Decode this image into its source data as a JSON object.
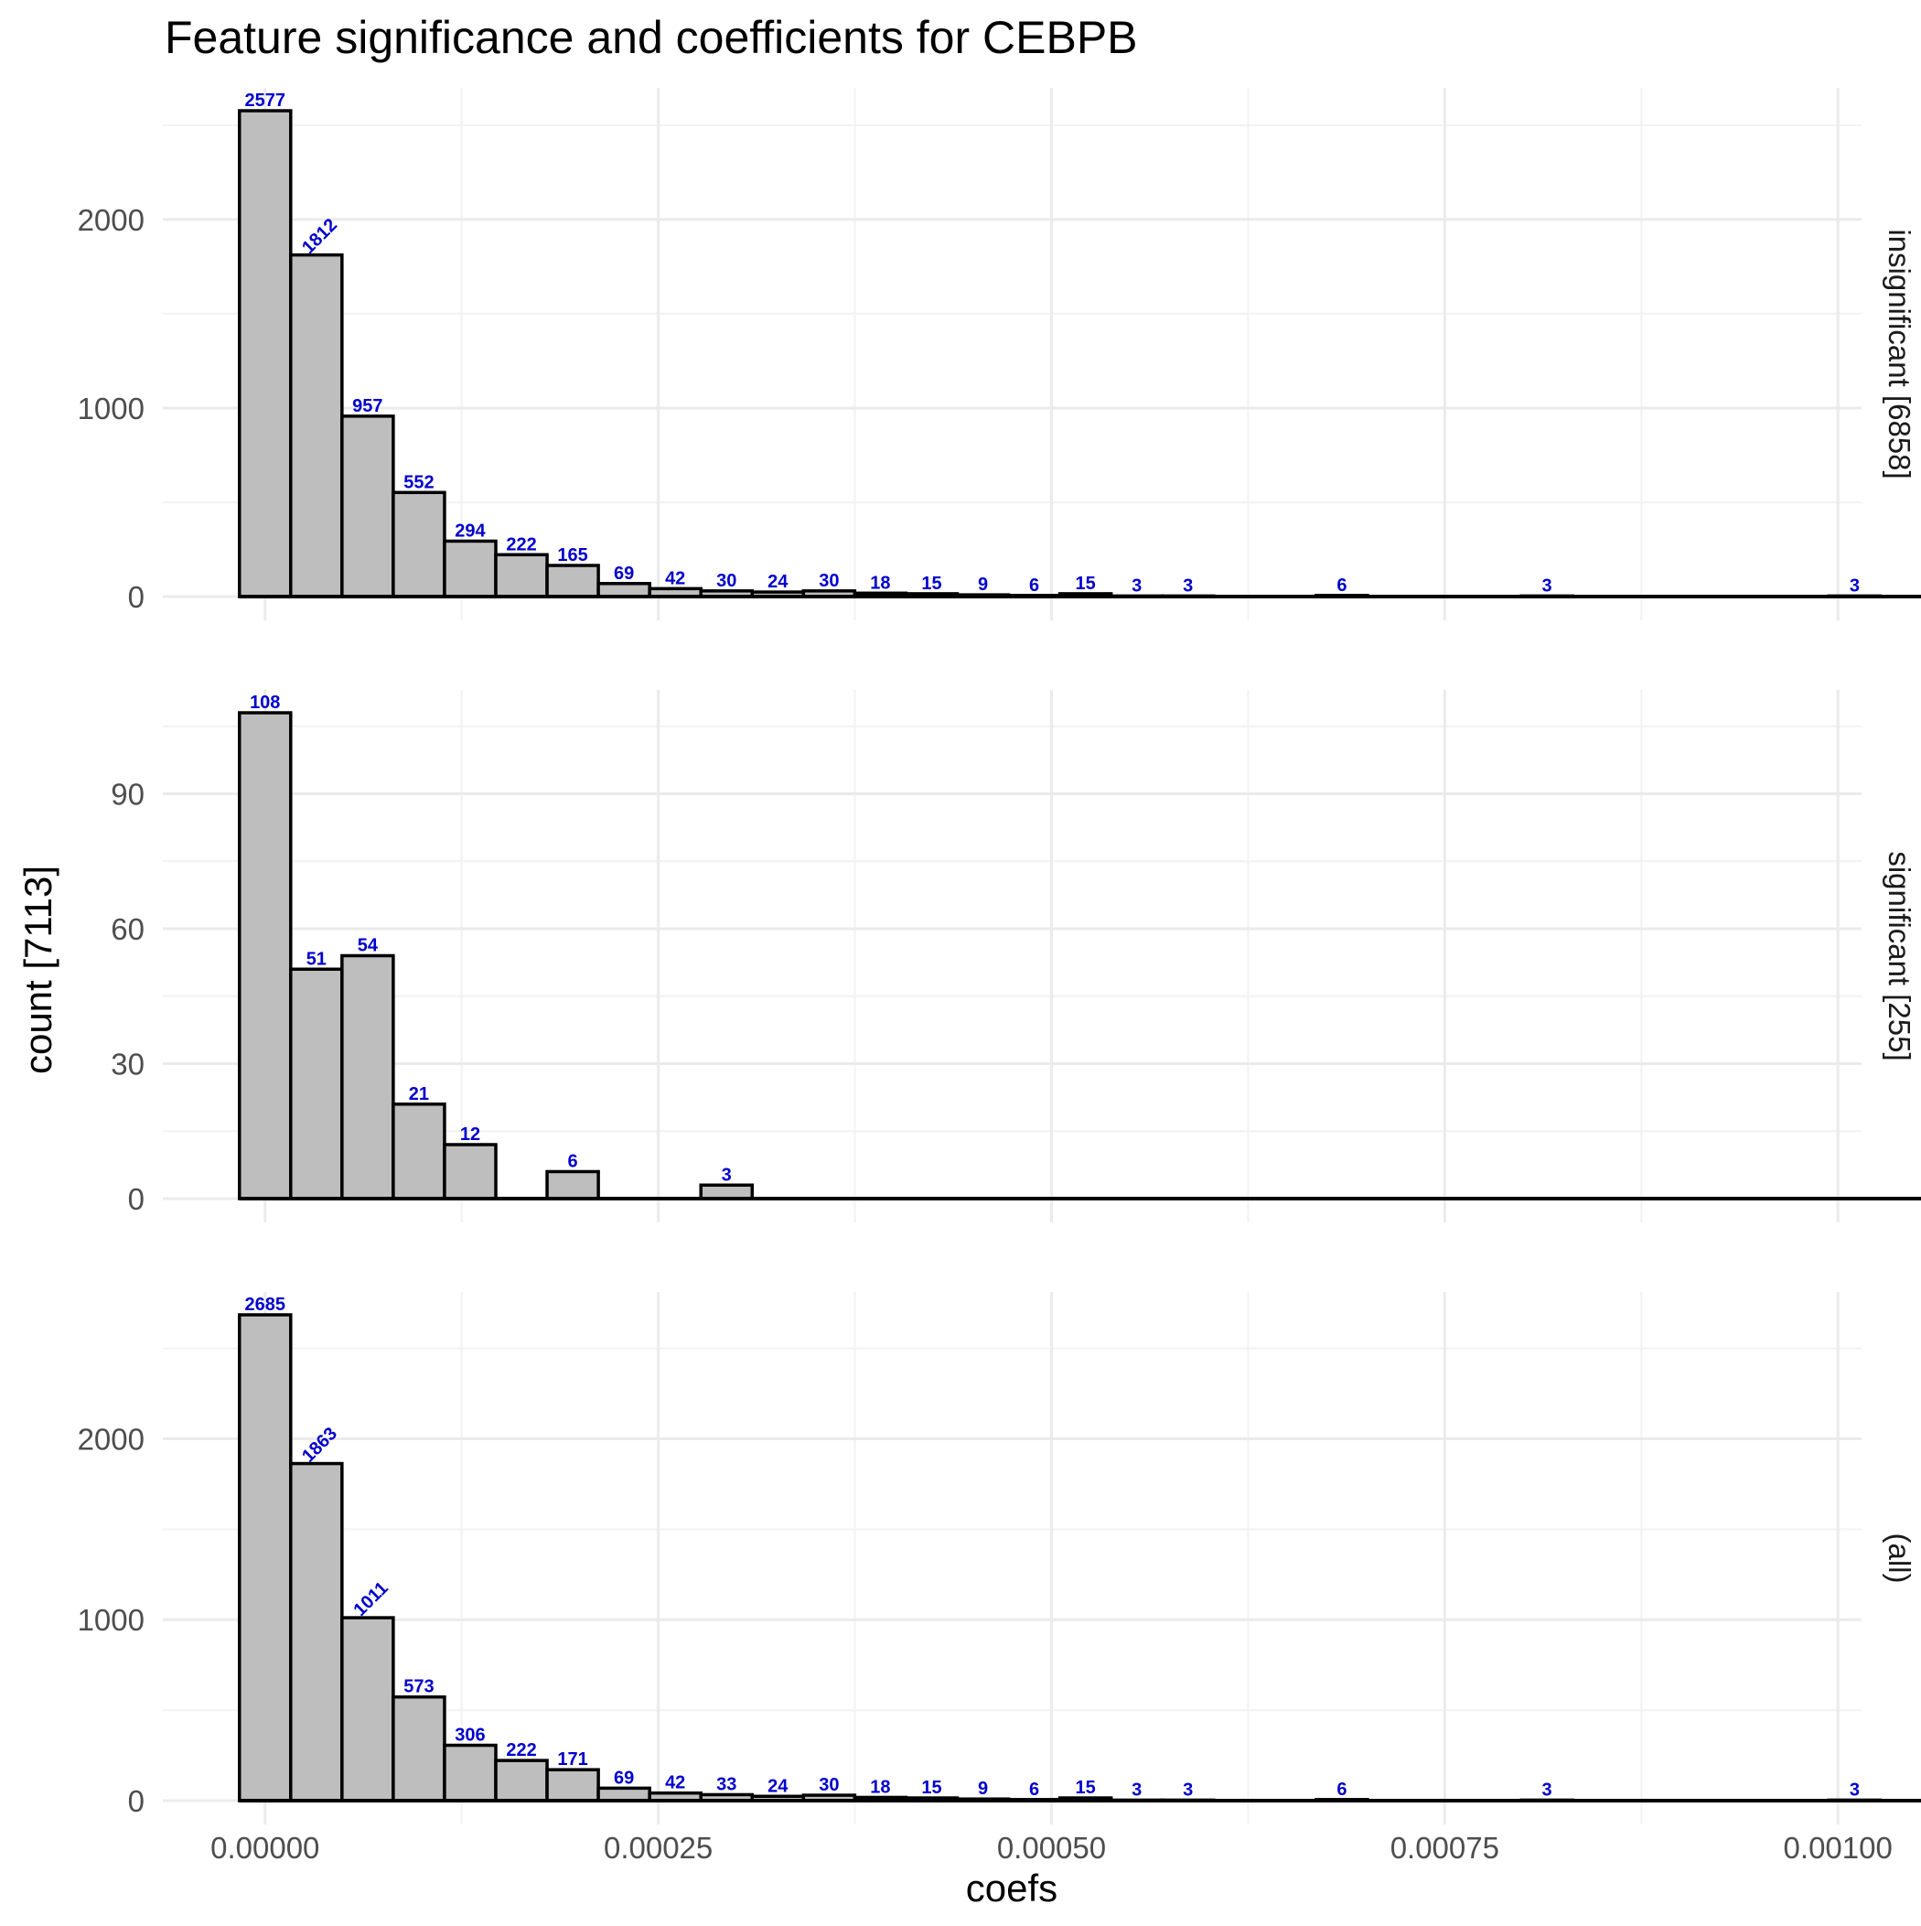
{
  "chart_data": {
    "type": "bar",
    "title": "Feature significance and coefficients for CEBPB",
    "xlabel": "coefs",
    "ylabel": "count [7113]",
    "x_ticks": [
      "0.00000",
      "0.00025",
      "0.00050",
      "0.00075",
      "0.00100"
    ],
    "x_tick_values": [
      0,
      0.00025,
      0.0005,
      0.00075,
      0.001
    ],
    "xlim": [
      -6.5e-05,
      0.001015
    ],
    "bin_width": 3.26e-05,
    "bin_start": -1.63e-05,
    "n_bins": 38,
    "grid": true,
    "panels": [
      {
        "strip": "insignificant [6858]",
        "ylim": [
          0,
          2577
        ],
        "y_ticks": [
          0,
          1000,
          2000
        ],
        "values": [
          2577,
          1812,
          957,
          552,
          294,
          222,
          165,
          69,
          42,
          30,
          24,
          30,
          18,
          15,
          9,
          6,
          15,
          3,
          3,
          0,
          0,
          6,
          0,
          0,
          0,
          3,
          0,
          0,
          0,
          0,
          0,
          3,
          0,
          3,
          0,
          0,
          0,
          0
        ],
        "rotated_labels": [
          1
        ]
      },
      {
        "strip": "significant [255]",
        "ylim": [
          0,
          108
        ],
        "y_ticks": [
          0,
          30,
          60,
          90
        ],
        "values": [
          108,
          51,
          54,
          21,
          12,
          0,
          6,
          0,
          0,
          3,
          0,
          0,
          0,
          0,
          0,
          0,
          0,
          0,
          0,
          0,
          0,
          0,
          0,
          0,
          0,
          0,
          0,
          0,
          0,
          0,
          0,
          0,
          0,
          0,
          0,
          0,
          0,
          0
        ],
        "rotated_labels": []
      },
      {
        "strip": "(all)",
        "ylim": [
          0,
          2685
        ],
        "y_ticks": [
          0,
          1000,
          2000
        ],
        "values": [
          2685,
          1863,
          1011,
          573,
          306,
          222,
          171,
          69,
          42,
          33,
          24,
          30,
          18,
          15,
          9,
          6,
          15,
          3,
          3,
          0,
          0,
          6,
          0,
          0,
          0,
          3,
          0,
          0,
          0,
          0,
          0,
          3,
          0,
          3,
          0,
          0,
          0,
          0
        ],
        "rotated_labels": [
          1,
          2
        ]
      }
    ]
  }
}
